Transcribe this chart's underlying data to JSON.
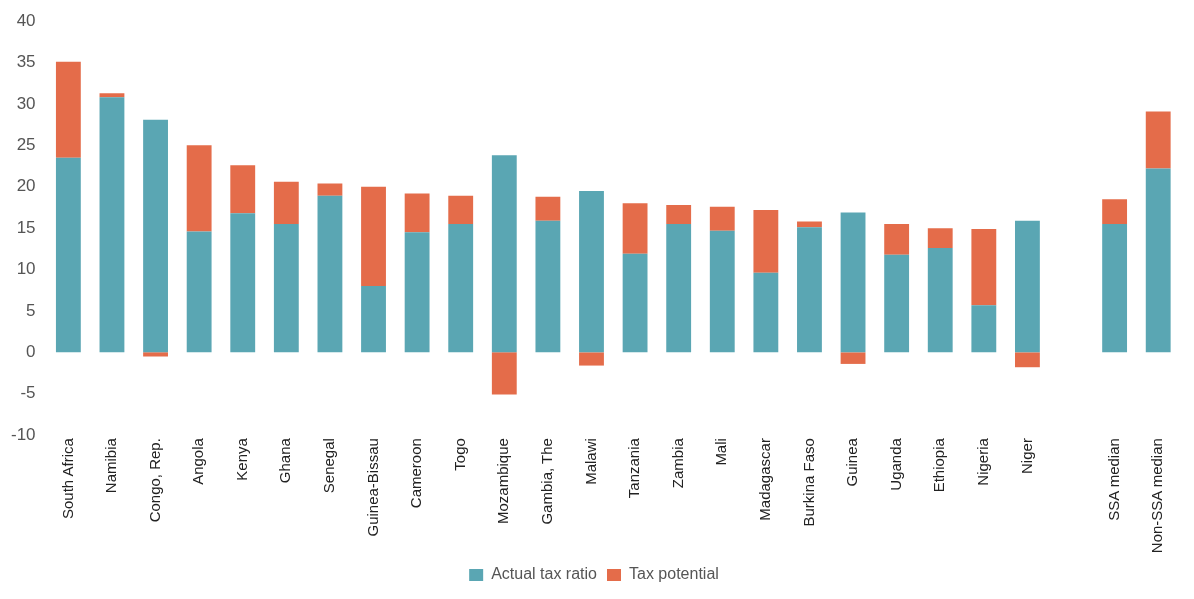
{
  "chart_data": {
    "type": "bar",
    "stacked": true,
    "categories": [
      "South Africa",
      "Namibia",
      "Congo, Rep.",
      "Angola",
      "Kenya",
      "Ghana",
      "Senegal",
      "Guinea-Bissau",
      "Cameroon",
      "Togo",
      "Mozambique",
      "Gambia, The",
      "Malawi",
      "Tanzania",
      "Zambia",
      "Mali",
      "Madagascar",
      "Burkina Faso",
      "Guinea",
      "Uganda",
      "Ethiopia",
      "Nigeria",
      "Niger",
      null,
      "SSA median",
      "Non-SSA median"
    ],
    "series": [
      {
        "name": "Actual tax ratio",
        "color": "#5aa6b3",
        "values": [
          23.5,
          30.8,
          28.1,
          14.6,
          16.8,
          15.5,
          18.9,
          8.0,
          14.5,
          15.5,
          23.8,
          15.9,
          19.5,
          11.9,
          15.5,
          14.7,
          9.6,
          15.1,
          16.9,
          11.8,
          12.6,
          5.7,
          15.9,
          null,
          15.5,
          22.2
        ]
      },
      {
        "name": "Tax potential",
        "color": "#e46c4a",
        "values": [
          11.6,
          0.5,
          -0.5,
          10.4,
          5.8,
          5.1,
          1.5,
          12.0,
          4.7,
          3.4,
          -5.1,
          2.9,
          -1.6,
          6.1,
          2.3,
          2.9,
          7.6,
          0.7,
          -1.4,
          3.7,
          2.4,
          9.2,
          -1.8,
          null,
          3.0,
          6.9
        ]
      }
    ],
    "ylim": [
      -10,
      40
    ],
    "yticks": [
      -10,
      -5,
      0,
      5,
      10,
      15,
      20,
      25,
      30,
      35,
      40
    ],
    "grid": false,
    "legend": "bottom"
  }
}
